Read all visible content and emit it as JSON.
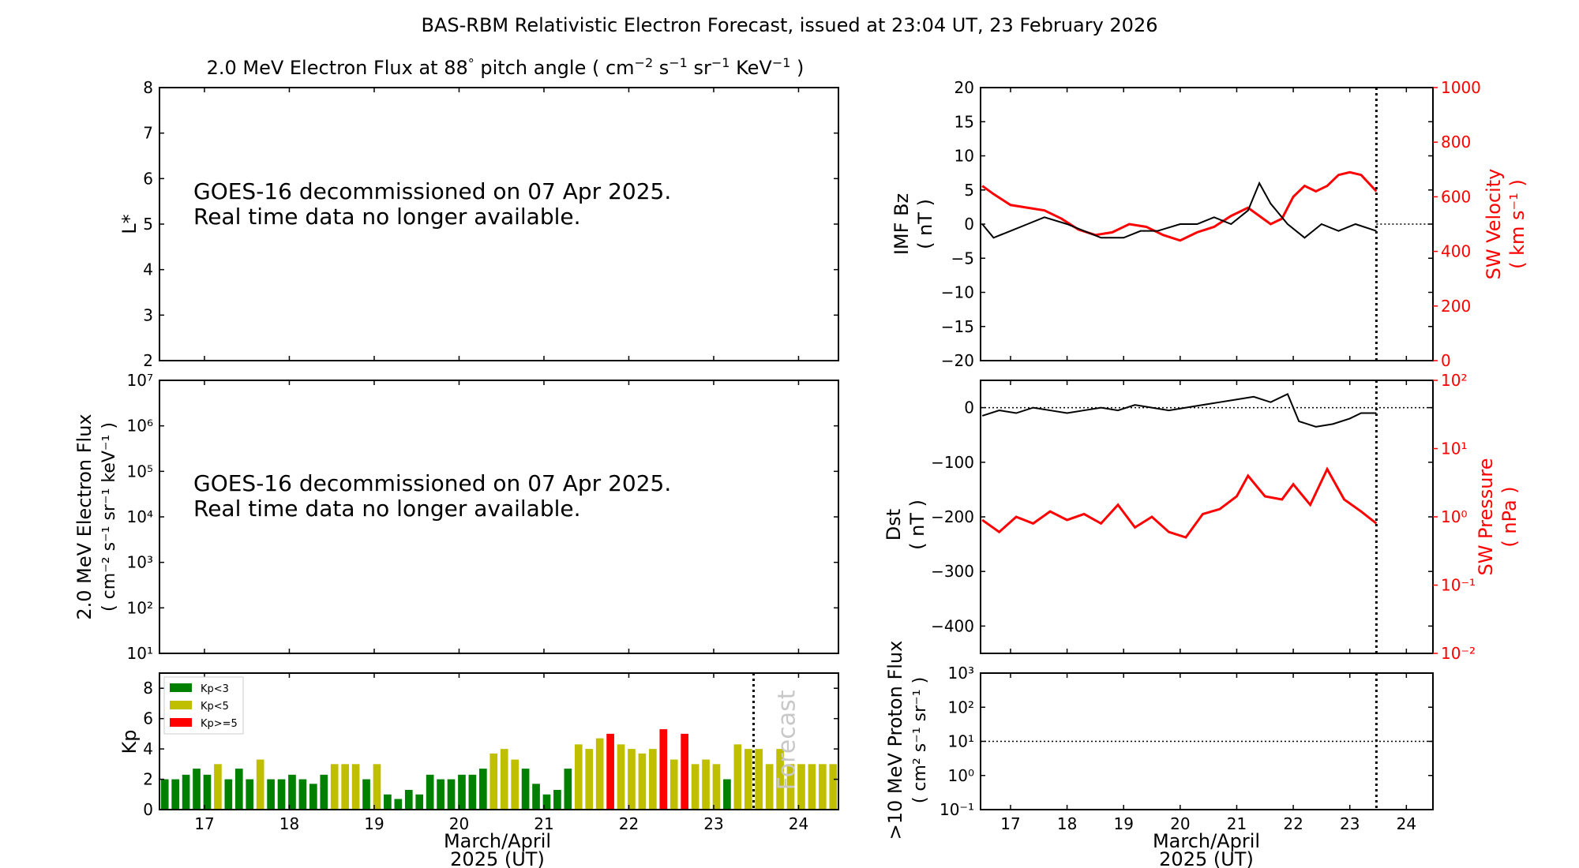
{
  "title": "BAS-RBM Relativistic Electron Forecast, issued at 23:04 UT, 23 February 2026",
  "x_ticks": [
    "17",
    "18",
    "19",
    "20",
    "21",
    "22",
    "23",
    "24"
  ],
  "x_label": {
    "line1": "March/April",
    "line2": "2025 (UT)"
  },
  "colors": {
    "kp_low": "#008000",
    "kp_mid": "#bfbf00",
    "kp_high": "#ff0000",
    "sw": "#ff0000",
    "bz": "#000000"
  },
  "chart_data": [
    {
      "id": "lstar",
      "type": "line",
      "title": "2.0 MeV Electron Flux at 88° pitch angle ( cm⁻² s⁻¹ sr⁻¹ KeV⁻¹ )",
      "title_parts": {
        "main": "2.0 MeV Electron Flux at 88",
        "deg": "°",
        "rest": " pitch angle ( cm",
        "e1": "−2",
        "s": " s",
        "e2": "−1",
        "sr": " sr",
        "e3": "−1",
        "kev": " KeV",
        "e4": "−1",
        "close": " )"
      },
      "ylabel": "L*",
      "ylim": [
        2,
        8
      ],
      "y_ticks": [
        "2",
        "3",
        "4",
        "5",
        "6",
        "7",
        "8"
      ],
      "annotation": [
        "GOES-16 decommissioned on 07 Apr 2025.",
        "Real time data no longer available."
      ]
    },
    {
      "id": "eflux",
      "type": "line",
      "ylabel_line1": "2.0 MeV Electron Flux",
      "ylabel_line2": "( cm⁻² s⁻¹ sr⁻¹ keV⁻¹ )",
      "y_scale": "log",
      "ylim": [
        10,
        10000000
      ],
      "y_ticks": [
        "10¹",
        "10²",
        "10³",
        "10⁴",
        "10⁵",
        "10⁶",
        "10⁷"
      ],
      "annotation": [
        "GOES-16 decommissioned on 07 Apr 2025.",
        "Real time data no longer available."
      ]
    },
    {
      "id": "kp",
      "type": "bar",
      "ylabel": "Kp",
      "ylim": [
        0,
        9
      ],
      "y_ticks": [
        "0",
        "2",
        "4",
        "6",
        "8"
      ],
      "x_range_days": [
        16.47,
        24.47
      ],
      "bar_width_days": 0.09,
      "forecast_line_x": 23.47,
      "forecast_label": "Forecast",
      "legend": [
        {
          "label": "Kp<3",
          "color": "#008000"
        },
        {
          "label": "Kp<5",
          "color": "#bfbf00"
        },
        {
          "label": "Kp>=5",
          "color": "#ff0000"
        }
      ],
      "values": [
        2.0,
        2.0,
        2.3,
        2.7,
        2.3,
        3.0,
        2.0,
        2.7,
        2.0,
        3.3,
        2.0,
        2.0,
        2.3,
        2.0,
        1.7,
        2.3,
        3.0,
        3.0,
        3.0,
        2.0,
        3.0,
        1.0,
        0.7,
        1.3,
        1.0,
        2.3,
        2.0,
        2.0,
        2.3,
        2.3,
        2.7,
        3.7,
        4.0,
        3.3,
        2.7,
        1.7,
        1.0,
        1.3,
        2.7,
        4.3,
        4.0,
        4.7,
        5.0,
        4.3,
        4.0,
        3.7,
        4.0,
        5.3,
        3.3,
        5.0,
        3.0,
        3.3,
        3.0,
        2.0,
        4.3,
        4.0,
        4.0,
        3.0,
        4.0,
        3.0,
        3.0,
        3.0,
        3.0,
        3.0
      ]
    },
    {
      "id": "bz_vsw",
      "type": "line",
      "ylabel_left_line1": "IMF Bz",
      "ylabel_left_line2": "( nT )",
      "ylim_left": [
        -20,
        20
      ],
      "y_ticks_left": [
        "−20",
        "−15",
        "−10",
        "−5",
        "0",
        "5",
        "10",
        "15",
        "20"
      ],
      "ylabel_right_line1": "SW Velocity",
      "ylabel_right_line2": "( km s⁻¹ )",
      "ylim_right": [
        0,
        1000
      ],
      "y_ticks_right": [
        "0",
        "200",
        "400",
        "600",
        "800",
        "1000"
      ],
      "x_range_days": [
        16.47,
        24.47
      ],
      "now_line_x": 23.47,
      "series": [
        {
          "name": "IMF Bz",
          "axis": "left",
          "color": "#000000",
          "points": [
            [
              16.5,
              0
            ],
            [
              16.7,
              -2
            ],
            [
              17.0,
              -1
            ],
            [
              17.3,
              0
            ],
            [
              17.6,
              1
            ],
            [
              18.0,
              0
            ],
            [
              18.3,
              -1
            ],
            [
              18.6,
              -2
            ],
            [
              19.0,
              -2
            ],
            [
              19.3,
              -1
            ],
            [
              19.6,
              -1
            ],
            [
              20.0,
              0
            ],
            [
              20.3,
              0
            ],
            [
              20.6,
              1
            ],
            [
              20.9,
              0
            ],
            [
              21.2,
              2
            ],
            [
              21.4,
              6
            ],
            [
              21.6,
              3
            ],
            [
              21.9,
              0
            ],
            [
              22.2,
              -2
            ],
            [
              22.5,
              0
            ],
            [
              22.8,
              -1
            ],
            [
              23.1,
              0
            ],
            [
              23.47,
              -1
            ]
          ]
        },
        {
          "name": "SW Velocity",
          "axis": "right",
          "color": "#ff0000",
          "points": [
            [
              16.5,
              640
            ],
            [
              16.7,
              610
            ],
            [
              17.0,
              570
            ],
            [
              17.3,
              560
            ],
            [
              17.6,
              550
            ],
            [
              17.9,
              520
            ],
            [
              18.2,
              480
            ],
            [
              18.5,
              460
            ],
            [
              18.8,
              470
            ],
            [
              19.1,
              500
            ],
            [
              19.4,
              490
            ],
            [
              19.7,
              460
            ],
            [
              20.0,
              440
            ],
            [
              20.3,
              470
            ],
            [
              20.6,
              490
            ],
            [
              20.9,
              530
            ],
            [
              21.2,
              560
            ],
            [
              21.4,
              530
            ],
            [
              21.6,
              500
            ],
            [
              21.8,
              520
            ],
            [
              22.0,
              600
            ],
            [
              22.2,
              640
            ],
            [
              22.4,
              620
            ],
            [
              22.6,
              640
            ],
            [
              22.8,
              680
            ],
            [
              23.0,
              690
            ],
            [
              23.2,
              680
            ],
            [
              23.47,
              620
            ]
          ]
        }
      ]
    },
    {
      "id": "dst_psw",
      "type": "line",
      "ylabel_left_line1": "Dst",
      "ylabel_left_line2": "( nT )",
      "ylim_left": [
        -450,
        50
      ],
      "y_ticks_left": [
        "−400",
        "−300",
        "−200",
        "−100",
        "0"
      ],
      "ylabel_right_line1": "SW Pressure",
      "ylabel_right_line2": "( nPa )",
      "y_scale_right": "log",
      "ylim_right": [
        0.01,
        100
      ],
      "y_ticks_right": [
        "10⁻²",
        "10⁻¹",
        "10⁰",
        "10¹",
        "10²"
      ],
      "x_range_days": [
        16.47,
        24.47
      ],
      "now_line_x": 23.47,
      "series": [
        {
          "name": "Dst",
          "axis": "left",
          "color": "#000000",
          "points": [
            [
              16.5,
              -15
            ],
            [
              16.8,
              -5
            ],
            [
              17.1,
              -10
            ],
            [
              17.4,
              0
            ],
            [
              17.7,
              -5
            ],
            [
              18.0,
              -10
            ],
            [
              18.3,
              -5
            ],
            [
              18.6,
              0
            ],
            [
              18.9,
              -5
            ],
            [
              19.2,
              5
            ],
            [
              19.5,
              0
            ],
            [
              19.8,
              -5
            ],
            [
              20.1,
              0
            ],
            [
              20.4,
              5
            ],
            [
              20.7,
              10
            ],
            [
              21.0,
              15
            ],
            [
              21.3,
              20
            ],
            [
              21.6,
              10
            ],
            [
              21.9,
              25
            ],
            [
              22.1,
              -25
            ],
            [
              22.4,
              -35
            ],
            [
              22.7,
              -30
            ],
            [
              23.0,
              -20
            ],
            [
              23.2,
              -10
            ],
            [
              23.47,
              -10
            ]
          ]
        },
        {
          "name": "SW Pressure",
          "axis": "right",
          "color": "#ff0000",
          "points": [
            [
              16.5,
              0.9
            ],
            [
              16.8,
              0.6
            ],
            [
              17.1,
              1.0
            ],
            [
              17.4,
              0.8
            ],
            [
              17.7,
              1.2
            ],
            [
              18.0,
              0.9
            ],
            [
              18.3,
              1.1
            ],
            [
              18.6,
              0.8
            ],
            [
              18.9,
              1.5
            ],
            [
              19.2,
              0.7
            ],
            [
              19.5,
              1.0
            ],
            [
              19.8,
              0.6
            ],
            [
              20.1,
              0.5
            ],
            [
              20.4,
              1.1
            ],
            [
              20.7,
              1.3
            ],
            [
              21.0,
              2.0
            ],
            [
              21.2,
              4.0
            ],
            [
              21.5,
              2.0
            ],
            [
              21.8,
              1.8
            ],
            [
              22.0,
              3.0
            ],
            [
              22.3,
              1.5
            ],
            [
              22.6,
              5.0
            ],
            [
              22.9,
              1.8
            ],
            [
              23.2,
              1.2
            ],
            [
              23.47,
              0.8
            ]
          ]
        }
      ]
    },
    {
      "id": "proton",
      "type": "line",
      "ylabel_line1": ">10 MeV Proton Flux",
      "ylabel_line2": "( cm² s⁻¹ sr⁻¹ )",
      "y_scale": "log",
      "ylim": [
        0.1,
        1000
      ],
      "y_ticks": [
        "10⁻¹",
        "10⁰",
        "10¹",
        "10²",
        "10³"
      ],
      "threshold": 10,
      "x_range_days": [
        16.47,
        24.47
      ],
      "now_line_x": 23.47
    }
  ]
}
